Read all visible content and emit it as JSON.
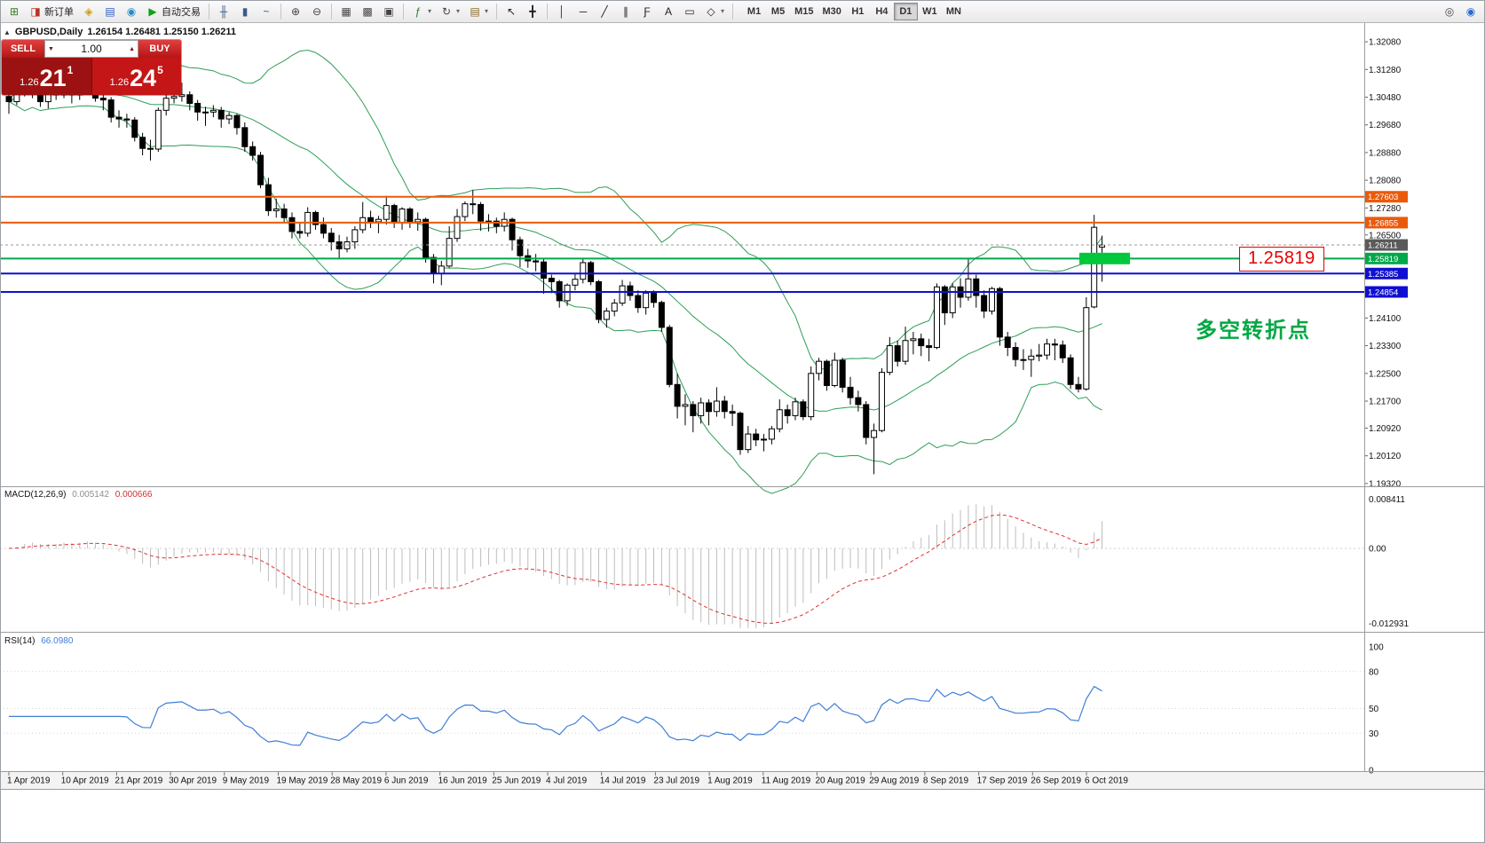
{
  "toolbar": {
    "items": [
      {
        "name": "new-chart-button",
        "icon_name": "new-chart-icon",
        "glyph": "⊞",
        "color": "#3c7a28"
      },
      {
        "name": "new-order-button",
        "icon_name": "new-order-icon",
        "glyph": "◨",
        "color": "#c03028",
        "label": "新订单"
      },
      {
        "name": "history-center-icon",
        "icon_name": "history-center-icon",
        "glyph": "◈",
        "color": "#d99800"
      },
      {
        "name": "market-watch-icon",
        "icon_name": "market-watch-icon",
        "glyph": "▤",
        "color": "#2a5ac8"
      },
      {
        "name": "navigator-icon",
        "icon_name": "navigator-icon",
        "glyph": "◉",
        "color": "#2a8ac8"
      },
      {
        "name": "auto-trading-button",
        "icon_name": "auto-trading-icon",
        "glyph": "▶",
        "color": "#14a014",
        "label": "自动交易"
      },
      {
        "type": "sep"
      },
      {
        "name": "bar-chart-button",
        "icon_name": "bar-chart-icon",
        "glyph": "╫",
        "color": "#3a5a8c"
      },
      {
        "name": "candlestick-chart-button",
        "icon_name": "candlestick-chart-icon",
        "glyph": "▮",
        "color": "#3a5a8c"
      },
      {
        "name": "line-chart-button",
        "icon_name": "line-chart-icon",
        "glyph": "~",
        "color": "#3a5a8c"
      },
      {
        "type": "sep"
      },
      {
        "name": "zoom-in-button",
        "icon_name": "zoom-in-icon",
        "glyph": "⊕",
        "color": "#444444"
      },
      {
        "name": "zoom-out-button",
        "icon_name": "zoom-out-icon",
        "glyph": "⊖",
        "color": "#444444"
      },
      {
        "type": "sep"
      },
      {
        "name": "tile-windows-button",
        "icon_name": "tile-windows-icon",
        "glyph": "▦",
        "color": "#444444"
      },
      {
        "name": "auto-arrange-button",
        "icon_name": "auto-arrange-icon",
        "glyph": "▩",
        "color": "#444444"
      },
      {
        "name": "grid-button",
        "icon_name": "grid-icon",
        "glyph": "▣",
        "color": "#444444"
      },
      {
        "type": "sep"
      },
      {
        "name": "indicators-button",
        "icon_name": "indicators-icon",
        "glyph": "ƒ",
        "color": "#2a7a2a",
        "caret": true
      },
      {
        "name": "periods-button",
        "icon_name": "periods-icon",
        "glyph": "↻",
        "color": "#444444",
        "caret": true
      },
      {
        "name": "templates-button",
        "icon_name": "templates-icon",
        "glyph": "▤",
        "color": "#8a6a2a",
        "caret": true
      },
      {
        "type": "sep"
      },
      {
        "name": "cursor-button",
        "icon_name": "cursor-icon",
        "glyph": "↖",
        "color": "#222222"
      },
      {
        "name": "crosshair-button",
        "icon_name": "crosshair-icon",
        "glyph": "╋",
        "color": "#222222"
      },
      {
        "type": "sep"
      },
      {
        "name": "vertical-line-button",
        "icon_name": "vertical-line-icon",
        "glyph": "│",
        "color": "#222222"
      },
      {
        "name": "horizontal-line-button",
        "icon_name": "horizontal-line-icon",
        "glyph": "─",
        "color": "#222222"
      },
      {
        "name": "trendline-button",
        "icon_name": "trendline-icon",
        "glyph": "╱",
        "color": "#222222"
      },
      {
        "name": "channel-button",
        "icon_name": "channel-icon",
        "glyph": "∥",
        "color": "#222222"
      },
      {
        "name": "fibonacci-button",
        "icon_name": "fibonacci-icon",
        "glyph": "Ƒ",
        "color": "#222222"
      },
      {
        "name": "text-button",
        "icon_name": "text-icon",
        "glyph": "A",
        "color": "#222222"
      },
      {
        "name": "label-button",
        "icon_name": "label-icon",
        "glyph": "▭",
        "color": "#222222"
      },
      {
        "name": "shapes-button",
        "icon_name": "shapes-icon",
        "glyph": "◇",
        "color": "#222222",
        "caret": true
      },
      {
        "type": "sep"
      }
    ],
    "timeframes": [
      "M1",
      "M5",
      "M15",
      "M30",
      "H1",
      "H4",
      "D1",
      "W1",
      "MN"
    ],
    "active_timeframe": "D1",
    "right_items": [
      {
        "name": "search-button",
        "icon_name": "search-icon",
        "glyph": "◎",
        "color": "#444444"
      },
      {
        "name": "community-button",
        "icon_name": "community-icon",
        "glyph": "◉",
        "color": "#2a6ad0"
      }
    ]
  },
  "chart": {
    "collapse_icon": "▲",
    "symbol_period": "GBPUSD,Daily",
    "ohlc_line": "1.26154 1.26481 1.25150 1.26211"
  },
  "trade_panel": {
    "sell_label": "SELL",
    "buy_label": "BUY",
    "volume": "1.00",
    "volume_down_glyph": "▼",
    "volume_up_glyph": "▲",
    "sell_price_prefix": "1.26",
    "sell_price_big": "21",
    "sell_price_sup": "1",
    "buy_price_prefix": "1.26",
    "buy_price_big": "24",
    "buy_price_sup": "5"
  },
  "annotations": {
    "price_callout": "1.25819",
    "turning_point": "多空转折点"
  },
  "macd_panel": {
    "name": "MACD(12,26,9)",
    "main_value": "0.005142",
    "signal_value": "0.000666",
    "axis": [
      "0.008411",
      "0.00",
      "-0.012931"
    ]
  },
  "rsi_panel": {
    "name": "RSI(14)",
    "value": "66.0980",
    "axis": [
      "100",
      "80",
      "50",
      "30",
      "0"
    ]
  },
  "chart_data": {
    "type": "candlestick",
    "symbol": "GBPUSD",
    "period": "Daily",
    "bollinger": {
      "period": 20,
      "deviation": 2
    },
    "y_axis_labels": [
      "1.32080",
      "1.31280",
      "1.30480",
      "1.29680",
      "1.28880",
      "1.28080",
      "1.27280",
      "1.26500",
      "1.24100",
      "1.23300",
      "1.22500",
      "1.21700",
      "1.20920",
      "1.20120",
      "1.19320"
    ],
    "x_labels": [
      "1 Apr 2019",
      "10 Apr 2019",
      "21 Apr 2019",
      "30 Apr 2019",
      "9 May 2019",
      "19 May 2019",
      "28 May 2019",
      "6 Jun 2019",
      "16 Jun 2019",
      "25 Jun 2019",
      "4 Jul 2019",
      "14 Jul 2019",
      "23 Jul 2019",
      "1 Aug 2019",
      "11 Aug 2019",
      "20 Aug 2019",
      "29 Aug 2019",
      "8 Sep 2019",
      "17 Sep 2019",
      "26 Sep 2019",
      "6 Oct 2019"
    ],
    "levels": [
      {
        "price": 1.27603,
        "label": "1.27603",
        "color": "#eb5a0a"
      },
      {
        "price": 1.26855,
        "label": "1.26855",
        "color": "#eb5a0a"
      },
      {
        "price": 1.25819,
        "label": "1.25819",
        "color": "#00a84a"
      },
      {
        "price": 1.25385,
        "label": "1.25385",
        "color": "#0f0fd0"
      },
      {
        "price": 1.24854,
        "label": "1.24854",
        "color": "#0f0fd0"
      }
    ],
    "current_price": {
      "price": 1.26211,
      "label": "1.26211",
      "box_color": "#5a5a5a"
    },
    "highlight_price": 1.25819,
    "highlight_color": "#00c83c",
    "candles": [
      [
        1.305,
        1.3065,
        1.3,
        1.3035
      ],
      [
        1.3035,
        1.3075,
        1.3025,
        1.306
      ],
      [
        1.306,
        1.3118,
        1.305,
        1.3105
      ],
      [
        1.3105,
        1.3112,
        1.3045,
        1.308
      ],
      [
        1.308,
        1.3095,
        1.302,
        1.3035
      ],
      [
        1.3035,
        1.307,
        1.3015,
        1.306
      ],
      [
        1.306,
        1.309,
        1.304,
        1.3055
      ],
      [
        1.3055,
        1.31,
        1.3045,
        1.3088
      ],
      [
        1.3088,
        1.3095,
        1.303,
        1.3055
      ],
      [
        1.3055,
        1.309,
        1.304,
        1.3075
      ],
      [
        1.3075,
        1.311,
        1.306,
        1.3098
      ],
      [
        1.3098,
        1.3105,
        1.3035,
        1.3045
      ],
      [
        1.3045,
        1.306,
        1.301,
        1.304
      ],
      [
        1.304,
        1.3048,
        1.2975,
        1.299
      ],
      [
        1.299,
        1.301,
        1.296,
        1.2985
      ],
      [
        1.2985,
        1.3,
        1.296,
        1.2982
      ],
      [
        1.2982,
        1.299,
        1.292,
        1.2932
      ],
      [
        1.2932,
        1.2945,
        1.288,
        1.29
      ],
      [
        1.29,
        1.2925,
        1.2865,
        1.2898
      ],
      [
        1.2898,
        1.3018,
        1.289,
        1.301
      ],
      [
        1.301,
        1.306,
        1.2995,
        1.3045
      ],
      [
        1.3045,
        1.3085,
        1.303,
        1.305
      ],
      [
        1.305,
        1.309,
        1.3035,
        1.3055
      ],
      [
        1.3055,
        1.3065,
        1.301,
        1.303
      ],
      [
        1.303,
        1.304,
        1.298,
        1.3005
      ],
      [
        1.3005,
        1.302,
        1.2965,
        1.3005
      ],
      [
        1.3005,
        1.3025,
        1.299,
        1.301
      ],
      [
        1.301,
        1.302,
        1.296,
        1.2985
      ],
      [
        1.2985,
        1.3005,
        1.297,
        1.2995
      ],
      [
        1.2995,
        1.3,
        1.294,
        1.296
      ],
      [
        1.296,
        1.2975,
        1.289,
        1.2905
      ],
      [
        1.2905,
        1.292,
        1.2865,
        1.288
      ],
      [
        1.288,
        1.289,
        1.2785,
        1.2795
      ],
      [
        1.2795,
        1.2815,
        1.2705,
        1.272
      ],
      [
        1.272,
        1.2755,
        1.27,
        1.2725
      ],
      [
        1.2725,
        1.274,
        1.2685,
        1.27
      ],
      [
        1.27,
        1.2715,
        1.264,
        1.266
      ],
      [
        1.266,
        1.2685,
        1.264,
        1.2655
      ],
      [
        1.2655,
        1.273,
        1.2645,
        1.2715
      ],
      [
        1.2715,
        1.272,
        1.2665,
        1.268
      ],
      [
        1.268,
        1.27,
        1.264,
        1.2655
      ],
      [
        1.2655,
        1.267,
        1.2605,
        1.263
      ],
      [
        1.263,
        1.265,
        1.258,
        1.261
      ],
      [
        1.261,
        1.2645,
        1.26,
        1.263
      ],
      [
        1.263,
        1.2675,
        1.261,
        1.2665
      ],
      [
        1.2665,
        1.2745,
        1.2655,
        1.27
      ],
      [
        1.27,
        1.272,
        1.267,
        1.2688
      ],
      [
        1.2688,
        1.2705,
        1.2655,
        1.2695
      ],
      [
        1.2695,
        1.2763,
        1.268,
        1.2735
      ],
      [
        1.2735,
        1.274,
        1.267,
        1.2685
      ],
      [
        1.2685,
        1.273,
        1.2665,
        1.2725
      ],
      [
        1.2725,
        1.273,
        1.267,
        1.2688
      ],
      [
        1.2688,
        1.2715,
        1.2662,
        1.2695
      ],
      [
        1.2695,
        1.27,
        1.257,
        1.2585
      ],
      [
        1.2585,
        1.2595,
        1.251,
        1.2538
      ],
      [
        1.2538,
        1.2575,
        1.2505,
        1.256
      ],
      [
        1.256,
        1.2675,
        1.2555,
        1.264
      ],
      [
        1.264,
        1.2725,
        1.263,
        1.2703
      ],
      [
        1.2703,
        1.2747,
        1.269,
        1.274
      ],
      [
        1.274,
        1.278,
        1.271,
        1.2738
      ],
      [
        1.2738,
        1.2745,
        1.2662,
        1.269
      ],
      [
        1.269,
        1.271,
        1.266,
        1.269
      ],
      [
        1.269,
        1.27,
        1.2655,
        1.2675
      ],
      [
        1.2675,
        1.2715,
        1.266,
        1.2695
      ],
      [
        1.2695,
        1.27,
        1.2605,
        1.2636
      ],
      [
        1.2636,
        1.2645,
        1.2557,
        1.259
      ],
      [
        1.259,
        1.261,
        1.2555,
        1.2575
      ],
      [
        1.2575,
        1.2595,
        1.2545,
        1.2572
      ],
      [
        1.2572,
        1.258,
        1.248,
        1.2525
      ],
      [
        1.2525,
        1.2535,
        1.2482,
        1.2515
      ],
      [
        1.2515,
        1.252,
        1.244,
        1.246
      ],
      [
        1.246,
        1.251,
        1.2445,
        1.2505
      ],
      [
        1.2505,
        1.254,
        1.249,
        1.2522
      ],
      [
        1.2522,
        1.258,
        1.251,
        1.257
      ],
      [
        1.257,
        1.2575,
        1.2505,
        1.2515
      ],
      [
        1.2515,
        1.252,
        1.2395,
        1.2406
      ],
      [
        1.2406,
        1.244,
        1.2382,
        1.243
      ],
      [
        1.243,
        1.2465,
        1.2415,
        1.2453
      ],
      [
        1.2453,
        1.252,
        1.2445,
        1.2503
      ],
      [
        1.2503,
        1.2515,
        1.246,
        1.2475
      ],
      [
        1.2475,
        1.249,
        1.2425,
        1.244
      ],
      [
        1.244,
        1.249,
        1.242,
        1.2482
      ],
      [
        1.2482,
        1.249,
        1.244,
        1.2455
      ],
      [
        1.2455,
        1.246,
        1.237,
        1.2383
      ],
      [
        1.2383,
        1.239,
        1.221,
        1.2218
      ],
      [
        1.2218,
        1.225,
        1.212,
        1.2155
      ],
      [
        1.2155,
        1.219,
        1.21,
        1.216
      ],
      [
        1.216,
        1.217,
        1.208,
        1.2128
      ],
      [
        1.2128,
        1.218,
        1.2105,
        1.2165
      ],
      [
        1.2165,
        1.2175,
        1.21,
        1.214
      ],
      [
        1.214,
        1.221,
        1.2125,
        1.217
      ],
      [
        1.217,
        1.2185,
        1.212,
        1.214
      ],
      [
        1.214,
        1.216,
        1.2098,
        1.2135
      ],
      [
        1.2135,
        1.214,
        1.2015,
        1.203
      ],
      [
        1.203,
        1.2098,
        1.202,
        1.2075
      ],
      [
        1.2075,
        1.209,
        1.204,
        1.2058
      ],
      [
        1.2058,
        1.2075,
        1.2025,
        1.206
      ],
      [
        1.206,
        1.2098,
        1.2045,
        1.209
      ],
      [
        1.209,
        1.2175,
        1.208,
        1.2145
      ],
      [
        1.2145,
        1.216,
        1.2105,
        1.2128
      ],
      [
        1.2128,
        1.218,
        1.2115,
        1.2168
      ],
      [
        1.2168,
        1.2175,
        1.2115,
        1.2125
      ],
      [
        1.2125,
        1.227,
        1.2115,
        1.225
      ],
      [
        1.225,
        1.2295,
        1.223,
        1.2285
      ],
      [
        1.2285,
        1.229,
        1.22,
        1.2215
      ],
      [
        1.2215,
        1.231,
        1.221,
        1.2288
      ],
      [
        1.2288,
        1.2295,
        1.2195,
        1.221
      ],
      [
        1.221,
        1.224,
        1.216,
        1.218
      ],
      [
        1.218,
        1.22,
        1.214,
        1.216
      ],
      [
        1.216,
        1.217,
        1.2045,
        1.2065
      ],
      [
        1.2065,
        1.2105,
        1.1959,
        1.2085
      ],
      [
        1.2085,
        1.2265,
        1.208,
        1.2253
      ],
      [
        1.2253,
        1.2355,
        1.2245,
        1.233
      ],
      [
        1.233,
        1.2345,
        1.227,
        1.2285
      ],
      [
        1.2285,
        1.2385,
        1.2275,
        1.2345
      ],
      [
        1.2345,
        1.237,
        1.2305,
        1.235
      ],
      [
        1.235,
        1.2365,
        1.23,
        1.233
      ],
      [
        1.233,
        1.235,
        1.2285,
        1.2325
      ],
      [
        1.2325,
        1.251,
        1.232,
        1.25
      ],
      [
        1.25,
        1.2505,
        1.239,
        1.2425
      ],
      [
        1.2425,
        1.251,
        1.241,
        1.25
      ],
      [
        1.25,
        1.2525,
        1.244,
        1.247
      ],
      [
        1.247,
        1.2582,
        1.246,
        1.2523
      ],
      [
        1.2523,
        1.2535,
        1.244,
        1.2475
      ],
      [
        1.2475,
        1.249,
        1.241,
        1.243
      ],
      [
        1.243,
        1.25,
        1.242,
        1.2495
      ],
      [
        1.2495,
        1.25,
        1.233,
        1.2355
      ],
      [
        1.2355,
        1.237,
        1.23,
        1.2325
      ],
      [
        1.2325,
        1.234,
        1.227,
        1.229
      ],
      [
        1.229,
        1.232,
        1.226,
        1.229
      ],
      [
        1.229,
        1.232,
        1.224,
        1.23
      ],
      [
        1.23,
        1.2335,
        1.2285,
        1.2303
      ],
      [
        1.2303,
        1.235,
        1.229,
        1.2335
      ],
      [
        1.2335,
        1.235,
        1.2288,
        1.2332
      ],
      [
        1.2332,
        1.2345,
        1.228,
        1.2295
      ],
      [
        1.2295,
        1.2305,
        1.2205,
        1.2218
      ],
      [
        1.2218,
        1.224,
        1.2195,
        1.2205
      ],
      [
        1.2205,
        1.247,
        1.22,
        1.244
      ],
      [
        1.2442,
        1.2708,
        1.2438,
        1.2672
      ],
      [
        1.2615,
        1.2648,
        1.2515,
        1.2621
      ]
    ]
  }
}
